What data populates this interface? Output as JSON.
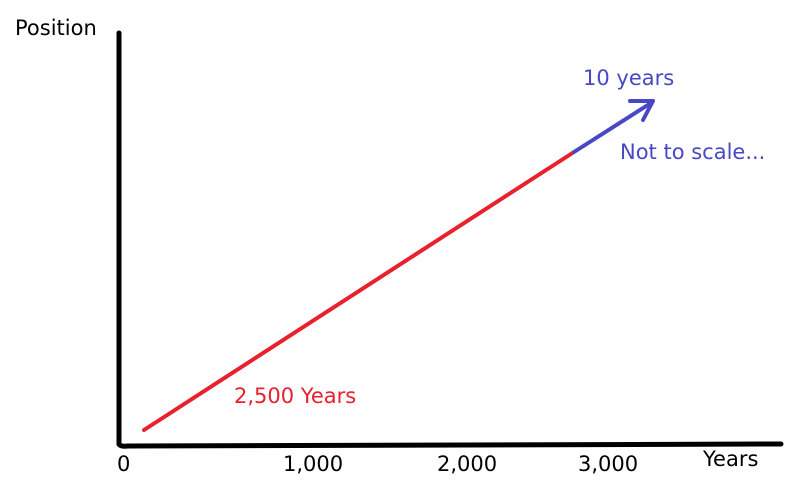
{
  "y_axis_label": "Position",
  "x_axis_label": "Years",
  "ticks": [
    "0",
    "1,000",
    "2,000",
    "3,000"
  ],
  "segments": {
    "long": {
      "label": "2,500 Years",
      "color": "#e8212e"
    },
    "short": {
      "label": "10 years",
      "color": "#4848c4"
    }
  },
  "note": "Not to scale...",
  "axis_color": "#000000"
}
